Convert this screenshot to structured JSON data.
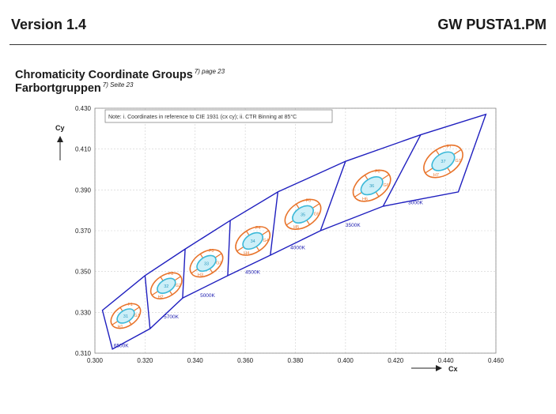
{
  "header": {
    "version": "Version 1.4",
    "product": "GW PUSTA1.PM"
  },
  "section": {
    "title_en": "Chromaticity Coordinate Groups",
    "title_en_ref": "7) page 23",
    "title_de": "Farbortgruppen",
    "title_de_ref": "7) Seite 23"
  },
  "colors": {
    "outline": "#1f1fbf",
    "orange_bin": "#e8732a",
    "cyan_bin": "#3ab8d8",
    "cyan_fill": "#cdeff8"
  },
  "chart_data": {
    "type": "scatter",
    "xlabel": "Cx",
    "ylabel": "Cy",
    "xlim": [
      0.3,
      0.46
    ],
    "ylim": [
      0.31,
      0.43
    ],
    "xticks": [
      "0.300",
      "0.320",
      "0.340",
      "0.360",
      "0.380",
      "0.400",
      "0.420",
      "0.440",
      "0.460"
    ],
    "yticks": [
      "0.310",
      "0.330",
      "0.350",
      "0.370",
      "0.390",
      "0.410",
      "0.430"
    ],
    "grid": true,
    "note": "Note: i. Coordinates in reference to CIE 1931 (cx cy); ii. CTR Binning at 85°C",
    "outline_top": [
      [
        0.303,
        0.331
      ],
      [
        0.32,
        0.348
      ],
      [
        0.336,
        0.361
      ],
      [
        0.354,
        0.375
      ],
      [
        0.373,
        0.389
      ],
      [
        0.4,
        0.404
      ],
      [
        0.43,
        0.417
      ],
      [
        0.456,
        0.427
      ]
    ],
    "outline_bottom": [
      [
        0.307,
        0.312
      ],
      [
        0.322,
        0.322
      ],
      [
        0.335,
        0.337
      ],
      [
        0.353,
        0.348
      ],
      [
        0.37,
        0.358
      ],
      [
        0.39,
        0.37
      ],
      [
        0.415,
        0.382
      ],
      [
        0.445,
        0.389
      ]
    ],
    "groups": [
      {
        "cct": "6500K",
        "cx": 0.3123,
        "cy": 0.3282,
        "cct_label_at": [
          0.3075,
          0.313
        ],
        "bins": [
          "F1",
          "31",
          "G1",
          "H1"
        ]
      },
      {
        "cct": "5700K",
        "cx": 0.3285,
        "cy": 0.343,
        "cct_label_at": [
          0.3275,
          0.327
        ],
        "bins": [
          "F2",
          "32",
          "G2",
          "H2"
        ]
      },
      {
        "cct": "5000K",
        "cx": 0.3445,
        "cy": 0.354,
        "cct_label_at": [
          0.342,
          0.3375
        ],
        "bins": [
          "F3",
          "33",
          "G3",
          "H3"
        ]
      },
      {
        "cct": "4500K",
        "cx": 0.363,
        "cy": 0.365,
        "cct_label_at": [
          0.36,
          0.349
        ],
        "bins": [
          "F4",
          "34",
          "G4",
          "H4"
        ]
      },
      {
        "cct": "4000K",
        "cx": 0.383,
        "cy": 0.378,
        "cct_label_at": [
          0.378,
          0.361
        ],
        "bins": [
          "F5",
          "35",
          "G5",
          "H5"
        ]
      },
      {
        "cct": "3500K",
        "cx": 0.4105,
        "cy": 0.392,
        "cct_label_at": [
          0.4,
          0.372
        ],
        "bins": [
          "F6",
          "36",
          "G6",
          "H6"
        ]
      },
      {
        "cct": "3000K",
        "cx": 0.439,
        "cy": 0.404,
        "cct_label_at": [
          0.425,
          0.383
        ],
        "bins": [
          "F7",
          "37",
          "G7",
          "H7"
        ]
      }
    ]
  }
}
